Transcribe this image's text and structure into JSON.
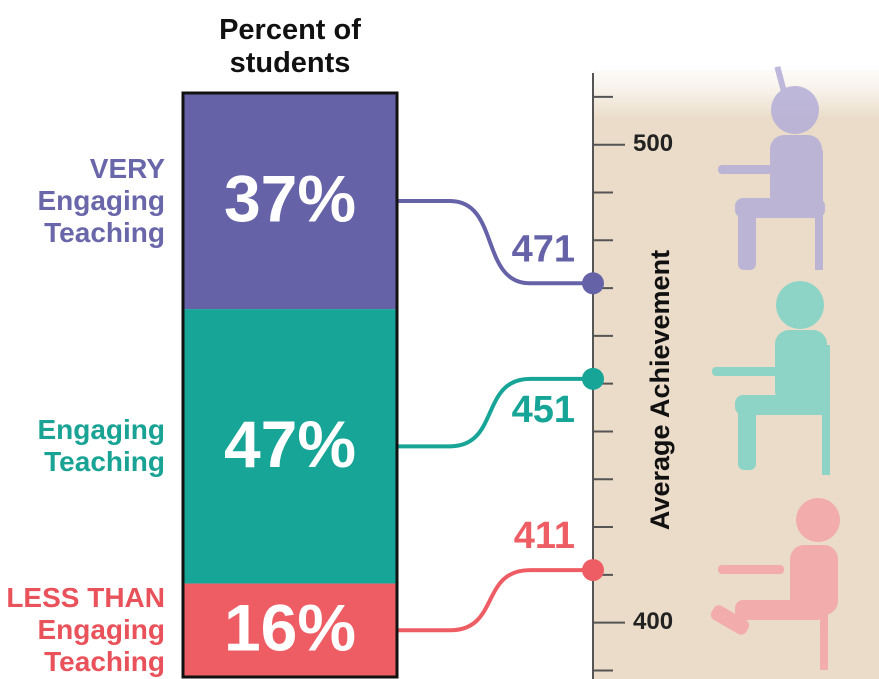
{
  "chart_data": {
    "type": "bar",
    "title": "Percent of students",
    "categories": [
      "VERY Engaging Teaching",
      "Engaging Teaching",
      "LESS THAN Engaging Teaching"
    ],
    "values": [
      37,
      47,
      16
    ],
    "value_labels": [
      "37%",
      "47%",
      "16%"
    ],
    "colors": [
      "#6562a8",
      "#17a597",
      "#ef5d64"
    ],
    "label_colors": [
      "#6a66aa",
      "#19a394",
      "#e9525a"
    ],
    "achievement": [
      471,
      451,
      411
    ],
    "y_label": "Average Achievement",
    "ylim": [
      388,
      515
    ],
    "yticks": [
      400,
      500
    ],
    "minor_yticks": [
      390,
      410,
      420,
      430,
      440,
      450,
      460,
      470,
      480,
      490,
      510
    ]
  }
}
